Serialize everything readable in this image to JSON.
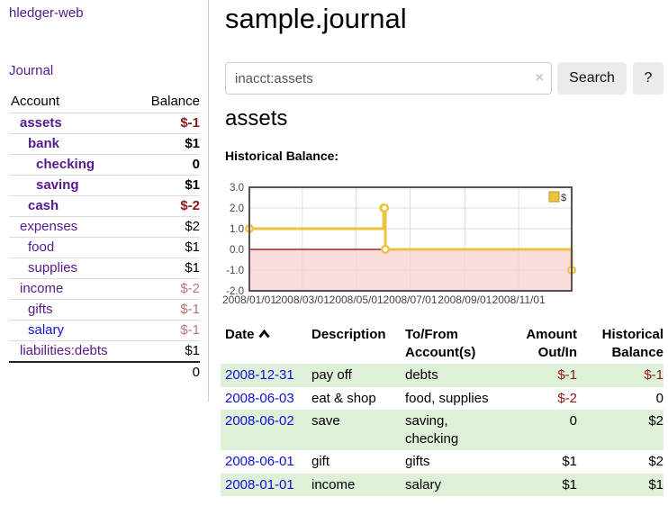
{
  "app": {
    "brand": "hledger-web",
    "nav": {
      "journal": "Journal"
    }
  },
  "sidebar": {
    "header": {
      "account": "Account",
      "balance": "Balance"
    },
    "accounts": [
      {
        "name": "assets",
        "balance": "$-1",
        "depth": 1,
        "bold": true
      },
      {
        "name": "bank",
        "balance": "$1",
        "depth": 2,
        "bold": true
      },
      {
        "name": "checking",
        "balance": "0",
        "depth": 3,
        "bold": true
      },
      {
        "name": "saving",
        "balance": "$1",
        "depth": 3,
        "bold": true
      },
      {
        "name": "cash",
        "balance": "$-2",
        "depth": 2,
        "bold": true
      },
      {
        "name": "expenses",
        "balance": "$2",
        "depth": 1,
        "bold": false
      },
      {
        "name": "food",
        "balance": "$1",
        "depth": 2,
        "bold": false
      },
      {
        "name": "supplies",
        "balance": "$1",
        "depth": 2,
        "bold": false
      },
      {
        "name": "income",
        "balance": "$-2",
        "depth": 1,
        "bold": false
      },
      {
        "name": "gifts",
        "balance": "$-1",
        "depth": 2,
        "bold": false
      },
      {
        "name": "salary",
        "balance": "$-1",
        "depth": 2,
        "bold": false,
        "visited": false
      },
      {
        "name": "liabilities:debts",
        "balance": "$1",
        "depth": 1,
        "bold": false
      }
    ],
    "total": "0"
  },
  "main": {
    "title": "sample.journal",
    "search": {
      "value": "inacct:assets",
      "clear_icon": "×",
      "search_button": "Search",
      "help_button": "?"
    },
    "account_heading": "assets",
    "section_label": "Historical Balance:"
  },
  "chart_data": {
    "type": "line",
    "title": "Historical Balance",
    "step": true,
    "x_start": "2008-01-01",
    "x_end": "2008-12-31",
    "ylim": [
      -2,
      3
    ],
    "yticks": [
      3,
      2,
      1,
      0,
      -1,
      -2
    ],
    "xticks": [
      "2008-01-01",
      "2008-03-01",
      "2008-05-01",
      "2008-07-01",
      "2008-09-01",
      "2008-11-01"
    ],
    "series": [
      {
        "name": "$",
        "color": "#edc240",
        "points": [
          {
            "date": "2008-01-01",
            "value": 1
          },
          {
            "date": "2008-06-01",
            "value": 2
          },
          {
            "date": "2008-06-02",
            "value": 2
          },
          {
            "date": "2008-06-03",
            "value": 0
          },
          {
            "date": "2008-12-31",
            "value": -1
          }
        ]
      }
    ],
    "legend_position": "top-right",
    "grid": true,
    "colors": {
      "negative_region": "#fadcdc",
      "zero_line": "#8b0000",
      "grid": "#dddddd",
      "border": "#545454",
      "legend_swatch_border": "#c09a2a",
      "tick_text": "#444444"
    }
  },
  "register": {
    "headers": {
      "date": "Date",
      "description": "Description",
      "accounts": "To/From Account(s)",
      "amount": "Amount Out/In",
      "balance": "Historical Balance"
    },
    "rows": [
      {
        "date": "2008-12-31",
        "description": "pay off",
        "accounts": "debts",
        "amount": "$-1",
        "balance": "$-1"
      },
      {
        "date": "2008-06-03",
        "description": "eat & shop",
        "accounts": "food, supplies",
        "amount": "$-2",
        "balance": "0"
      },
      {
        "date": "2008-06-02",
        "description": "save",
        "accounts": "saving, checking",
        "amount": "0",
        "balance": "$2"
      },
      {
        "date": "2008-06-01",
        "description": "gift",
        "accounts": "gifts",
        "amount": "$1",
        "balance": "$2"
      },
      {
        "date": "2008-01-01",
        "description": "income",
        "accounts": "salary",
        "amount": "$1",
        "balance": "$1"
      }
    ]
  }
}
